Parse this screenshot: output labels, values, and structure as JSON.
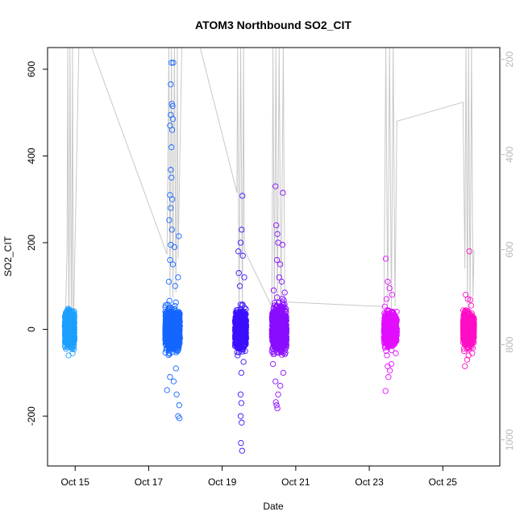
{
  "chart_data": {
    "type": "scatter",
    "title": "ATOM3 Northbound SO2_CIT",
    "xlabel": "Date",
    "ylabel": "SO2_CIT",
    "x_unit": "day of October",
    "xlim": [
      14.25,
      26.55
    ],
    "ylim": [
      -315,
      650
    ],
    "x_ticks": [
      {
        "value": 15,
        "label": "Oct 15"
      },
      {
        "value": 17,
        "label": "Oct 17"
      },
      {
        "value": 19,
        "label": "Oct 19"
      },
      {
        "value": 21,
        "label": "Oct 21"
      },
      {
        "value": 23,
        "label": "Oct 23"
      },
      {
        "value": 25,
        "label": "Oct 25"
      }
    ],
    "y_ticks": [
      -200,
      0,
      200,
      400,
      600
    ],
    "y2_ticks": [
      200,
      400,
      600,
      800,
      1000
    ],
    "y2_range": [
      1055,
      175
    ],
    "grid": false,
    "colors": {
      "axis": "#000000",
      "secondary_axis": "#b8b8b8",
      "altitude_line": "#c8c8c8"
    },
    "series": [
      {
        "color": "#1c9fff",
        "x_center": 14.85,
        "x_span": [
          14.72,
          14.98
        ],
        "core_range": [
          -40,
          40
        ],
        "points": [
          [
            14.82,
            -60
          ],
          [
            14.93,
            -55
          ],
          [
            14.78,
            30
          ],
          [
            14.9,
            42
          ],
          [
            14.75,
            -45
          ]
        ]
      },
      {
        "color": "#1466ff",
        "x_center": 17.65,
        "x_span": [
          17.45,
          17.85
        ],
        "core_range": [
          -50,
          50
        ],
        "points": [
          [
            17.62,
            615
          ],
          [
            17.67,
            615
          ],
          [
            17.6,
            565
          ],
          [
            17.63,
            520
          ],
          [
            17.65,
            515
          ],
          [
            17.6,
            495
          ],
          [
            17.66,
            485
          ],
          [
            17.58,
            470
          ],
          [
            17.64,
            460
          ],
          [
            17.62,
            420
          ],
          [
            17.6,
            368
          ],
          [
            17.62,
            350
          ],
          [
            17.58,
            310
          ],
          [
            17.64,
            300
          ],
          [
            17.6,
            280
          ],
          [
            17.56,
            252
          ],
          [
            17.63,
            230
          ],
          [
            17.82,
            215
          ],
          [
            17.6,
            195
          ],
          [
            17.7,
            190
          ],
          [
            17.58,
            160
          ],
          [
            17.66,
            150
          ],
          [
            17.8,
            120
          ],
          [
            17.55,
            110
          ],
          [
            17.72,
            100
          ],
          [
            17.5,
            -140
          ],
          [
            17.83,
            -175
          ],
          [
            17.8,
            -200
          ],
          [
            17.84,
            -205
          ],
          [
            17.76,
            -150
          ],
          [
            17.68,
            -120
          ],
          [
            17.58,
            -110
          ],
          [
            17.74,
            -90
          ]
        ]
      },
      {
        "color": "#3b10ff",
        "x_center": 19.5,
        "x_span": [
          19.35,
          19.65
        ],
        "core_range": [
          -45,
          45
        ],
        "points": [
          [
            19.55,
            308
          ],
          [
            19.53,
            230
          ],
          [
            19.5,
            200
          ],
          [
            19.44,
            180
          ],
          [
            19.56,
            170
          ],
          [
            19.45,
            130
          ],
          [
            19.6,
            120
          ],
          [
            19.48,
            100
          ],
          [
            19.52,
            -100
          ],
          [
            19.5,
            -150
          ],
          [
            19.52,
            -170
          ],
          [
            19.5,
            -200
          ],
          [
            19.53,
            -215
          ],
          [
            19.51,
            -262
          ],
          [
            19.54,
            -280
          ],
          [
            19.42,
            -60
          ],
          [
            19.58,
            -75
          ]
        ]
      },
      {
        "color": "#8a0dff",
        "x_center": 20.55,
        "x_span": [
          20.35,
          20.75
        ],
        "core_range": [
          -55,
          55
        ],
        "points": [
          [
            20.45,
            330
          ],
          [
            20.65,
            315
          ],
          [
            20.47,
            240
          ],
          [
            20.5,
            220
          ],
          [
            20.52,
            200
          ],
          [
            20.64,
            195
          ],
          [
            20.49,
            160
          ],
          [
            20.58,
            150
          ],
          [
            20.55,
            120
          ],
          [
            20.62,
            110
          ],
          [
            20.4,
            90
          ],
          [
            20.7,
            85
          ],
          [
            20.45,
            -120
          ],
          [
            20.52,
            -150
          ],
          [
            20.48,
            -175
          ],
          [
            20.5,
            -182
          ],
          [
            20.46,
            -168
          ],
          [
            20.66,
            -100
          ],
          [
            20.58,
            -130
          ],
          [
            20.38,
            -80
          ]
        ]
      },
      {
        "color": "#e20dff",
        "x_center": 23.55,
        "x_span": [
          23.4,
          23.75
        ],
        "core_range": [
          -40,
          40
        ],
        "points": [
          [
            23.45,
            163
          ],
          [
            23.5,
            110
          ],
          [
            23.55,
            95
          ],
          [
            23.62,
            80
          ],
          [
            23.47,
            70
          ],
          [
            23.44,
            -142
          ],
          [
            23.52,
            -110
          ],
          [
            23.56,
            -95
          ],
          [
            23.6,
            -80
          ],
          [
            23.5,
            -85
          ],
          [
            23.72,
            -55
          ],
          [
            23.48,
            -60
          ]
        ]
      },
      {
        "color": "#ff0dc6",
        "x_center": 25.7,
        "x_span": [
          25.55,
          25.85
        ],
        "core_range": [
          -40,
          40
        ],
        "points": [
          [
            25.72,
            180
          ],
          [
            25.62,
            80
          ],
          [
            25.68,
            70
          ],
          [
            25.75,
            68
          ],
          [
            25.6,
            -85
          ],
          [
            25.66,
            -70
          ],
          [
            25.7,
            -60
          ],
          [
            25.8,
            -55
          ],
          [
            25.58,
            -50
          ]
        ]
      }
    ],
    "secondary_line": {
      "name": "",
      "unit_axis": "right",
      "points": [
        [
          14.72,
          800
        ],
        [
          14.78,
          600
        ],
        [
          14.8,
          175
        ],
        [
          14.83,
          800
        ],
        [
          14.86,
          175
        ],
        [
          14.9,
          780
        ],
        [
          14.93,
          175
        ],
        [
          14.95,
          780
        ],
        [
          15.1,
          175
        ],
        [
          15.45,
          175
        ],
        [
          17.5,
          610
        ],
        [
          17.55,
          175
        ],
        [
          17.58,
          700
        ],
        [
          17.62,
          175
        ],
        [
          17.66,
          700
        ],
        [
          17.7,
          175
        ],
        [
          17.74,
          690
        ],
        [
          17.78,
          175
        ],
        [
          17.8,
          620
        ],
        [
          17.9,
          175
        ],
        [
          18.4,
          175
        ],
        [
          19.4,
          480
        ],
        [
          19.42,
          175
        ],
        [
          19.46,
          740
        ],
        [
          19.5,
          175
        ],
        [
          19.55,
          730
        ],
        [
          19.58,
          175
        ],
        [
          19.6,
          600
        ],
        [
          20.35,
          720
        ],
        [
          20.38,
          175
        ],
        [
          20.42,
          730
        ],
        [
          20.46,
          175
        ],
        [
          20.5,
          720
        ],
        [
          20.55,
          175
        ],
        [
          20.6,
          760
        ],
        [
          20.66,
          175
        ],
        [
          20.7,
          710
        ],
        [
          23.4,
          720
        ],
        [
          23.45,
          175
        ],
        [
          23.5,
          720
        ],
        [
          23.55,
          175
        ],
        [
          23.6,
          730
        ],
        [
          23.65,
          175
        ],
        [
          23.7,
          720
        ],
        [
          23.75,
          330
        ],
        [
          25.55,
          290
        ],
        [
          25.6,
          640
        ],
        [
          25.63,
          175
        ],
        [
          25.67,
          720
        ],
        [
          25.7,
          175
        ],
        [
          25.74,
          720
        ],
        [
          25.78,
          175
        ],
        [
          25.82,
          700
        ],
        [
          25.85,
          600
        ]
      ]
    }
  }
}
